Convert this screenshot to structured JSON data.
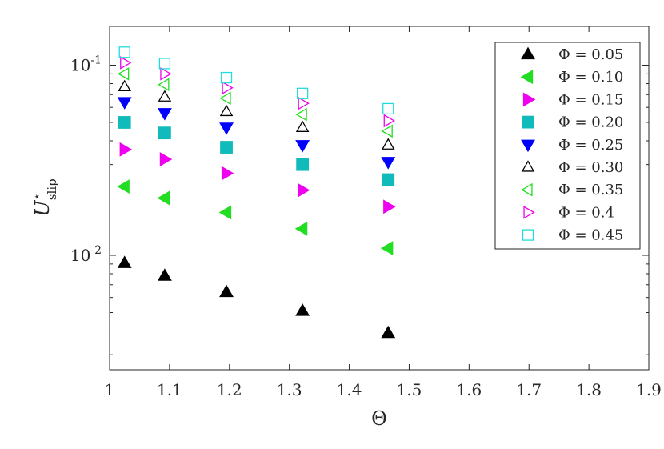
{
  "chart_data": {
    "type": "scatter",
    "title": "",
    "xlabel": "Θ",
    "ylabel": {
      "base": "U",
      "superscript": "⋆",
      "subscript": "slip"
    },
    "xlim": [
      1,
      1.9
    ],
    "ylim": [
      0.0025,
      0.16
    ],
    "yscale": "log",
    "grid": false,
    "box": true,
    "legend_position": "top-right",
    "x_ticks": [
      1,
      1.1,
      1.2,
      1.3,
      1.4,
      1.5,
      1.6,
      1.7,
      1.8,
      1.9
    ],
    "x_tick_labels": [
      "1",
      "1.1",
      "1.2",
      "1.3",
      "1.4",
      "1.5",
      "1.6",
      "1.7",
      "1.8",
      "1.9"
    ],
    "y_major_ticks": [
      {
        "value": 0.01,
        "base": "10",
        "exp": "-2"
      },
      {
        "value": 0.1,
        "base": "10",
        "exp": "-1"
      }
    ],
    "x": [
      1.025,
      1.092,
      1.195,
      1.322,
      1.465
    ],
    "series": [
      {
        "name": "Φ = 0.05",
        "marker": "triangle-up",
        "filled": true,
        "color": "#000000",
        "values": [
          0.0091,
          0.0078,
          0.0064,
          0.0051,
          0.0039
        ]
      },
      {
        "name": "Φ = 0.10",
        "marker": "triangle-left",
        "filled": true,
        "color": "#22dd22",
        "values": [
          0.023,
          0.02,
          0.0168,
          0.0138,
          0.0109
        ]
      },
      {
        "name": "Φ = 0.15",
        "marker": "triangle-right",
        "filled": true,
        "color": "#ee00ee",
        "values": [
          0.036,
          0.032,
          0.027,
          0.022,
          0.018
        ]
      },
      {
        "name": "Φ = 0.20",
        "marker": "square",
        "filled": true,
        "color": "#11bbbb",
        "values": [
          0.05,
          0.044,
          0.037,
          0.03,
          0.025
        ]
      },
      {
        "name": "Φ = 0.25",
        "marker": "triangle-down",
        "filled": true,
        "color": "#0000ff",
        "values": [
          0.064,
          0.056,
          0.047,
          0.038,
          0.031
        ]
      },
      {
        "name": "Φ = 0.30",
        "marker": "triangle-up",
        "filled": false,
        "color": "#000000",
        "values": [
          0.077,
          0.068,
          0.057,
          0.047,
          0.038
        ]
      },
      {
        "name": "Φ = 0.35",
        "marker": "triangle-left",
        "filled": false,
        "color": "#22dd22",
        "values": [
          0.09,
          0.079,
          0.067,
          0.055,
          0.045
        ]
      },
      {
        "name": "Φ = 0.4",
        "marker": "triangle-right",
        "filled": false,
        "color": "#ee00ee",
        "values": [
          0.103,
          0.09,
          0.076,
          0.063,
          0.051
        ]
      },
      {
        "name": "Φ = 0.45",
        "marker": "square",
        "filled": false,
        "color": "#22dddd",
        "values": [
          0.117,
          0.102,
          0.086,
          0.071,
          0.059
        ]
      }
    ]
  }
}
